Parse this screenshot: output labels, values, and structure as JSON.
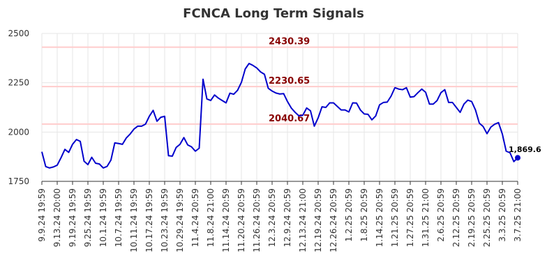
{
  "chart_data": {
    "type": "line",
    "title": "FCNCA Long Term Signals",
    "xlabel": "",
    "ylabel": "",
    "ylim": [
      1750,
      2500
    ],
    "y_ticks": [
      1750,
      2000,
      2250,
      2500
    ],
    "grid": true,
    "x_tick_labels": [
      "9.9.24 19:59",
      "9.13.24 20:00",
      "9.19.24 19:59",
      "9.25.24 19:59",
      "10.1.24 19:59",
      "10.7.24 19:59",
      "10.11.24 19:59",
      "10.17.24 19:59",
      "10.23.24 19:59",
      "10.29.24 19:59",
      "11.4.24 20:59",
      "11.8.24 21:00",
      "11.14.24 20:59",
      "11.20.24 20:59",
      "11.26.24 20:59",
      "12.3.24 20:59",
      "12.9.24 20:59",
      "12.13.24 21:00",
      "12.19.24 20:59",
      "12.26.24 20:59",
      "1.2.25 20:59",
      "1.8.25 20:59",
      "1.14.25 20:59",
      "1.21.25 20:59",
      "1.27.25 20:59",
      "1.31.25 21:00",
      "2.6.25 20:59",
      "2.12.25 20:59",
      "2.19.25 20:59",
      "2.25.25 20:59",
      "3.3.25 20:59",
      "3.7.25 21:00"
    ],
    "series": [
      {
        "values": [
          1900,
          1825,
          1818,
          1823,
          1832,
          1870,
          1912,
          1897,
          1938,
          1962,
          1953,
          1852,
          1835,
          1872,
          1842,
          1838,
          1818,
          1826,
          1858,
          1945,
          1942,
          1938,
          1970,
          1990,
          2015,
          2030,
          2030,
          2040,
          2080,
          2110,
          2055,
          2075,
          2080,
          1880,
          1878,
          1922,
          1938,
          1972,
          1935,
          1925,
          1903,
          1918,
          2268,
          2168,
          2160,
          2188,
          2172,
          2160,
          2148,
          2197,
          2192,
          2212,
          2252,
          2320,
          2348,
          2338,
          2325,
          2305,
          2293,
          2222,
          2208,
          2198,
          2193,
          2195,
          2155,
          2122,
          2100,
          2082,
          2085,
          2122,
          2108,
          2030,
          2072,
          2128,
          2125,
          2148,
          2148,
          2130,
          2112,
          2112,
          2102,
          2148,
          2147,
          2112,
          2092,
          2090,
          2062,
          2082,
          2138,
          2150,
          2152,
          2182,
          2225,
          2218,
          2215,
          2225,
          2177,
          2180,
          2200,
          2218,
          2202,
          2142,
          2142,
          2160,
          2200,
          2215,
          2150,
          2150,
          2125,
          2100,
          2142,
          2162,
          2155,
          2112,
          2045,
          2028,
          1992,
          2025,
          2040,
          2048,
          1990,
          1903,
          1895,
          1850,
          1869.6
        ],
        "color": "#0000cc"
      }
    ],
    "levels": [
      {
        "value": 2430.39,
        "label": "2430.39"
      },
      {
        "value": 2230.65,
        "label": "2230.65"
      },
      {
        "value": 2040.67,
        "label": "2040.67"
      }
    ],
    "last_value_label": "1,869.6",
    "colors": {
      "line": "#0000cc",
      "level_line": "#ffcccc",
      "level_label": "#880000",
      "grid": "#e6e6e6",
      "last_point": "#0000cc"
    }
  }
}
